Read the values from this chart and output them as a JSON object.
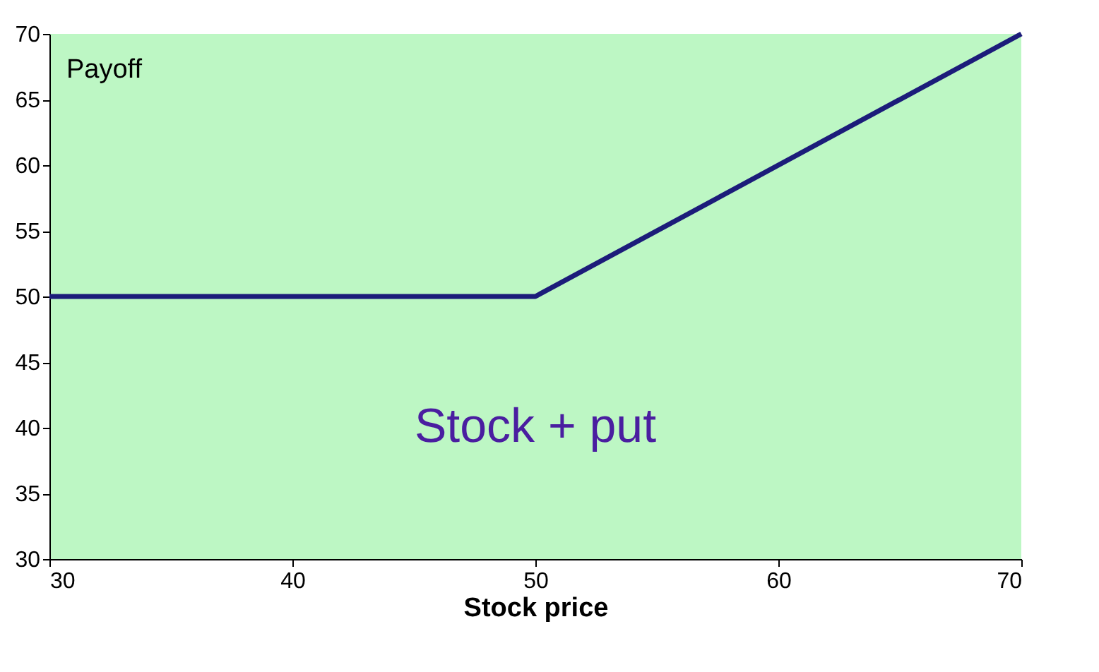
{
  "chart_data": {
    "type": "line",
    "xlabel": "Stock price",
    "ylabel": "Payoff",
    "x": [
      30,
      50,
      70
    ],
    "series": [
      {
        "color": "#1c1c7a",
        "values": [
          50,
          50,
          70
        ]
      }
    ],
    "xlim": [
      30,
      70
    ],
    "xticks": [
      30,
      40,
      50,
      60,
      70
    ],
    "ylim": [
      30,
      70
    ],
    "yticks": [
      30,
      35,
      40,
      45,
      50,
      55,
      60,
      65,
      70
    ],
    "grid": false,
    "legend": false,
    "marker": "none",
    "line_style": "solid",
    "annotations": [
      "Stock + put"
    ]
  }
}
